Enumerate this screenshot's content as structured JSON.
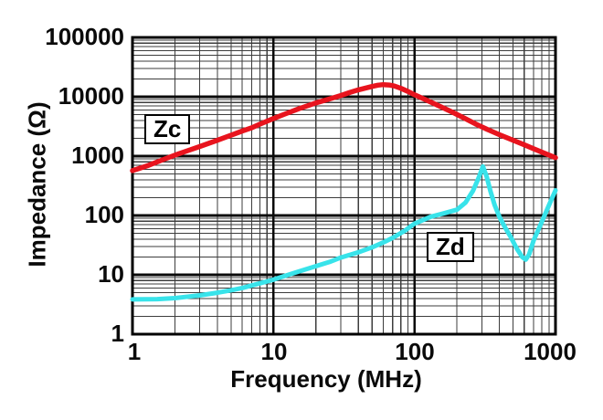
{
  "chart_data": {
    "type": "line",
    "title": "",
    "xlabel": "Frequency (MHz)",
    "ylabel": "Impedance (Ω)",
    "xscale": "log",
    "yscale": "log",
    "xlim": [
      1,
      1000
    ],
    "ylim": [
      1,
      100000
    ],
    "xtick_labels": [
      "1",
      "10",
      "100",
      "1000"
    ],
    "ytick_labels": [
      "100000",
      "10000",
      "1000",
      "100",
      "10",
      "1"
    ],
    "grid": {
      "major": true,
      "minor": true,
      "major_color": "#0a0a0a",
      "minor_color": "#3d3d3d"
    },
    "legend_position": "on-curve boxes",
    "series": [
      {
        "name": "Zc",
        "label": "Zc",
        "color": "#e8141e",
        "points": [
          [
            1,
            570
          ],
          [
            1.3,
            700
          ],
          [
            1.7,
            900
          ],
          [
            2,
            1040
          ],
          [
            2.5,
            1250
          ],
          [
            3,
            1450
          ],
          [
            4,
            1850
          ],
          [
            5,
            2250
          ],
          [
            6,
            2650
          ],
          [
            7,
            3000
          ],
          [
            8,
            3450
          ],
          [
            10,
            4300
          ],
          [
            12,
            5100
          ],
          [
            15,
            6250
          ],
          [
            20,
            7900
          ],
          [
            25,
            9200
          ],
          [
            30,
            10500
          ],
          [
            35,
            11900
          ],
          [
            40,
            13100
          ],
          [
            50,
            14900
          ],
          [
            55,
            15700
          ],
          [
            60,
            16000
          ],
          [
            66,
            15800
          ],
          [
            72,
            15200
          ],
          [
            80,
            13900
          ],
          [
            90,
            12300
          ],
          [
            100,
            10800
          ],
          [
            120,
            8900
          ],
          [
            150,
            7000
          ],
          [
            180,
            5700
          ],
          [
            220,
            4500
          ],
          [
            270,
            3500
          ],
          [
            330,
            2800
          ],
          [
            400,
            2300
          ],
          [
            500,
            1850
          ],
          [
            600,
            1550
          ],
          [
            700,
            1330
          ],
          [
            850,
            1100
          ],
          [
            1000,
            940
          ]
        ]
      },
      {
        "name": "Zd",
        "label": "Zd",
        "color": "#38e3ea",
        "points": [
          [
            1,
            3.85
          ],
          [
            1.5,
            3.9
          ],
          [
            2,
            4.05
          ],
          [
            2.5,
            4.3
          ],
          [
            3,
            4.5
          ],
          [
            4,
            5.0
          ],
          [
            5,
            5.5
          ],
          [
            6,
            6.0
          ],
          [
            7,
            6.6
          ],
          [
            8,
            7.2
          ],
          [
            10,
            8.3
          ],
          [
            12,
            9.6
          ],
          [
            15,
            11.3
          ],
          [
            20,
            14
          ],
          [
            25,
            16.5
          ],
          [
            30,
            19.5
          ],
          [
            40,
            24
          ],
          [
            50,
            29
          ],
          [
            60,
            35
          ],
          [
            70,
            42
          ],
          [
            85,
            55
          ],
          [
            100,
            73
          ],
          [
            130,
            95
          ],
          [
            160,
            108
          ],
          [
            200,
            125
          ],
          [
            230,
            165
          ],
          [
            260,
            260
          ],
          [
            285,
            430
          ],
          [
            306,
            670
          ],
          [
            325,
            450
          ],
          [
            345,
            260
          ],
          [
            370,
            150
          ],
          [
            400,
            95
          ],
          [
            440,
            62
          ],
          [
            480,
            44
          ],
          [
            530,
            28
          ],
          [
            580,
            20
          ],
          [
            615,
            18
          ],
          [
            650,
            22
          ],
          [
            700,
            38
          ],
          [
            800,
            78
          ],
          [
            900,
            150
          ],
          [
            1000,
            265
          ]
        ]
      }
    ]
  }
}
